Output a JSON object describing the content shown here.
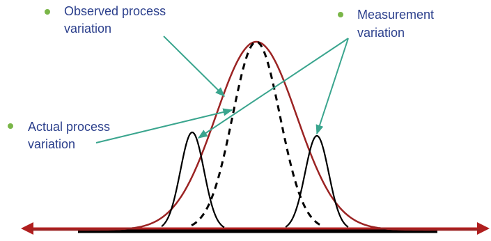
{
  "labels": {
    "observed": [
      "Observed process",
      "variation"
    ],
    "measurement": [
      "Measurement",
      "variation"
    ],
    "actual": [
      "Actual process",
      "variation"
    ]
  },
  "colors": {
    "label_text": "#2b3f8c",
    "bullet": "#7ab648",
    "arrow": "#3aa58e",
    "observed_curve": "#9b2323",
    "axis_line": "#b01e1e",
    "curve": "#000000"
  }
}
